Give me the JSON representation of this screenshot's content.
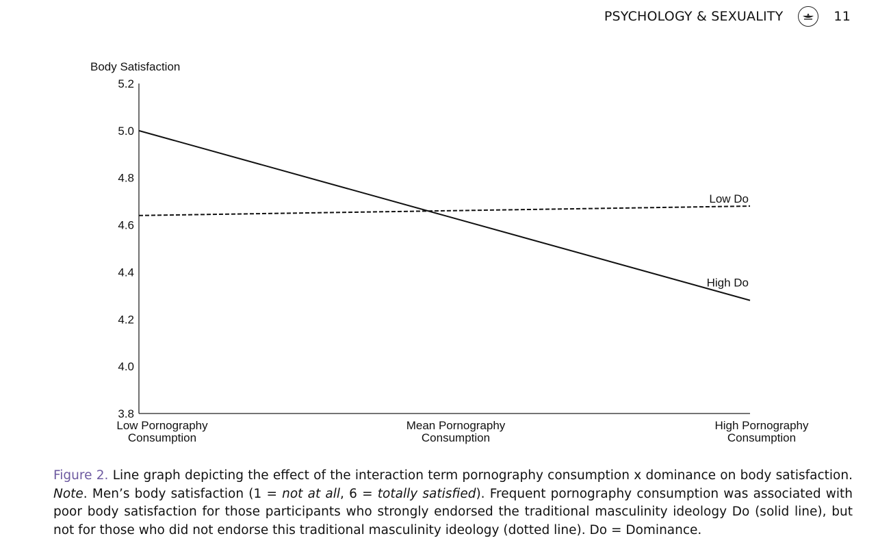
{
  "header": {
    "journal": "PSYCHOLOGY & SEXUALITY",
    "page_number": "11",
    "logo_icon": "lamp-logo-icon"
  },
  "chart_data": {
    "type": "line",
    "ylabel": "Body Satisfaction",
    "xlabel": "",
    "ylim": [
      3.8,
      5.2
    ],
    "yticks": [
      3.8,
      4.0,
      4.2,
      4.4,
      4.6,
      4.8,
      5.0,
      5.2
    ],
    "categories": [
      [
        "Low Pornography",
        "Consumption"
      ],
      [
        "Mean Pornography",
        "Consumption"
      ],
      [
        "High Pornography",
        "Consumption"
      ]
    ],
    "series": [
      {
        "name": "Low Do",
        "style": "dashed",
        "color": "#111111",
        "values": [
          4.64,
          4.66,
          4.68
        ]
      },
      {
        "name": "High Do",
        "style": "solid",
        "color": "#111111",
        "values": [
          5.0,
          4.64,
          4.28
        ]
      }
    ],
    "grid": false,
    "legend": "inline labels at right end of lines"
  },
  "caption": {
    "figure_label": "Figure 2.",
    "title": " Line graph depicting the effect of the interaction term pornography consumption x dominance on body satisfaction.",
    "note_label": "Note",
    "note_1": ". Men’s body satisfaction (1 = ",
    "note_em_1": "not at all",
    "note_2": ", 6 = ",
    "note_em_2": "totally satisfied",
    "note_3": "). Frequent pornography consumption was associated with poor body satisfaction for those participants who strongly endorsed the traditional masculinity ideology Do (solid line), but not for those who did not endorse this traditional masculinity ideology (dotted line). Do = Dominance."
  }
}
